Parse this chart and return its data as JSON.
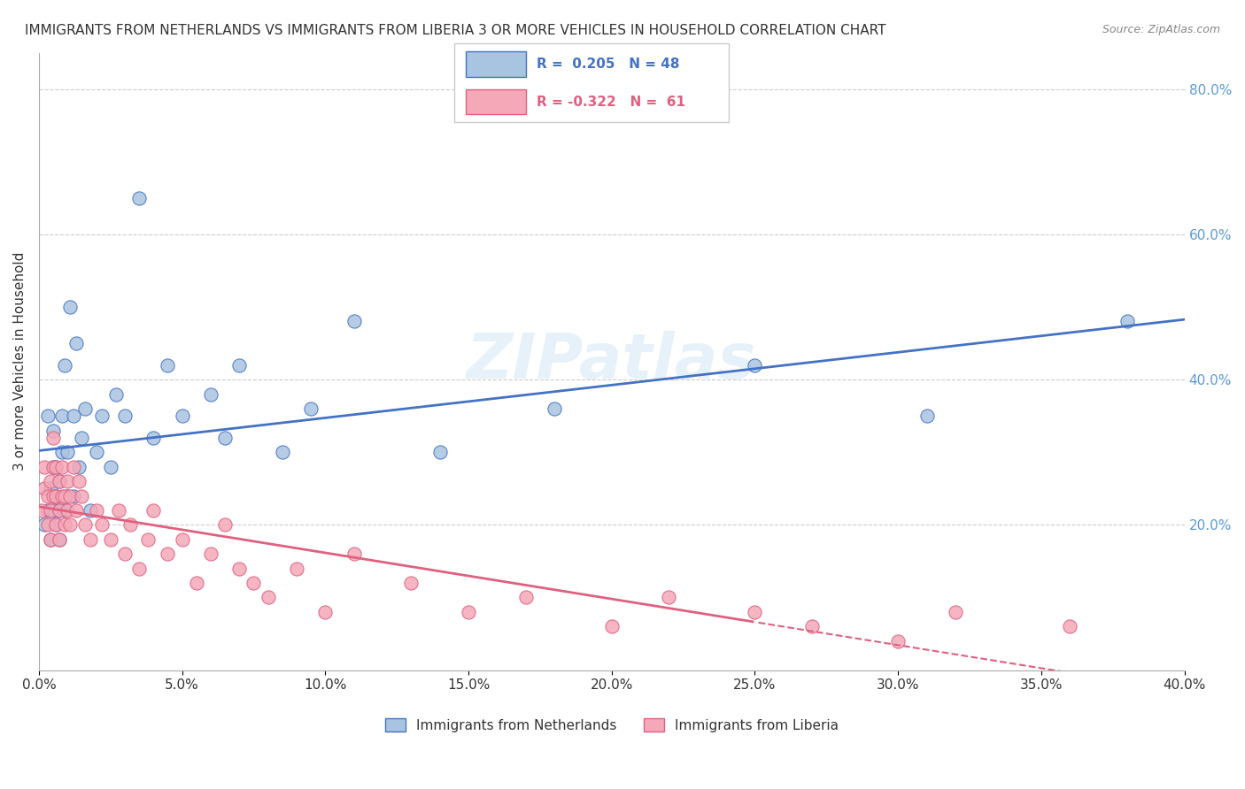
{
  "title": "IMMIGRANTS FROM NETHERLANDS VS IMMIGRANTS FROM LIBERIA 3 OR MORE VEHICLES IN HOUSEHOLD CORRELATION CHART",
  "source": "Source: ZipAtlas.com",
  "ylabel": "3 or more Vehicles in Household",
  "xlabel_blue": "Immigrants from Netherlands",
  "xlabel_pink": "Immigrants from Liberia",
  "r_blue": 0.205,
  "n_blue": 48,
  "r_pink": -0.322,
  "n_pink": 61,
  "xlim": [
    0.0,
    0.4
  ],
  "ylim": [
    0.0,
    0.85
  ],
  "xticks": [
    0.0,
    0.05,
    0.1,
    0.15,
    0.2,
    0.25,
    0.3,
    0.35,
    0.4
  ],
  "yticks_right": [
    0.2,
    0.4,
    0.6,
    0.8
  ],
  "color_blue": "#A8C4E0",
  "color_pink": "#F4A8B8",
  "line_blue": "#4472C4",
  "line_pink": "#E06080",
  "watermark": "ZIPatlas",
  "blue_x": [
    0.002,
    0.003,
    0.003,
    0.004,
    0.004,
    0.005,
    0.005,
    0.005,
    0.006,
    0.006,
    0.006,
    0.007,
    0.007,
    0.007,
    0.008,
    0.008,
    0.009,
    0.009,
    0.01,
    0.01,
    0.011,
    0.012,
    0.012,
    0.013,
    0.014,
    0.015,
    0.016,
    0.018,
    0.02,
    0.022,
    0.025,
    0.027,
    0.03,
    0.035,
    0.04,
    0.045,
    0.05,
    0.06,
    0.065,
    0.07,
    0.085,
    0.095,
    0.11,
    0.14,
    0.18,
    0.25,
    0.31,
    0.38
  ],
  "blue_y": [
    0.2,
    0.35,
    0.22,
    0.25,
    0.18,
    0.22,
    0.28,
    0.33,
    0.2,
    0.24,
    0.28,
    0.18,
    0.22,
    0.26,
    0.3,
    0.35,
    0.22,
    0.42,
    0.24,
    0.3,
    0.5,
    0.24,
    0.35,
    0.45,
    0.28,
    0.32,
    0.36,
    0.22,
    0.3,
    0.35,
    0.28,
    0.38,
    0.35,
    0.65,
    0.32,
    0.42,
    0.35,
    0.38,
    0.32,
    0.42,
    0.3,
    0.36,
    0.48,
    0.3,
    0.36,
    0.42,
    0.35,
    0.48
  ],
  "pink_x": [
    0.001,
    0.002,
    0.002,
    0.003,
    0.003,
    0.004,
    0.004,
    0.004,
    0.005,
    0.005,
    0.005,
    0.006,
    0.006,
    0.006,
    0.007,
    0.007,
    0.007,
    0.008,
    0.008,
    0.009,
    0.009,
    0.01,
    0.01,
    0.011,
    0.011,
    0.012,
    0.013,
    0.014,
    0.015,
    0.016,
    0.018,
    0.02,
    0.022,
    0.025,
    0.028,
    0.03,
    0.032,
    0.035,
    0.038,
    0.04,
    0.045,
    0.05,
    0.055,
    0.06,
    0.065,
    0.07,
    0.075,
    0.08,
    0.09,
    0.1,
    0.11,
    0.13,
    0.15,
    0.17,
    0.2,
    0.22,
    0.25,
    0.27,
    0.3,
    0.32,
    0.36
  ],
  "pink_y": [
    0.22,
    0.25,
    0.28,
    0.2,
    0.24,
    0.18,
    0.22,
    0.26,
    0.24,
    0.28,
    0.32,
    0.2,
    0.24,
    0.28,
    0.18,
    0.22,
    0.26,
    0.24,
    0.28,
    0.2,
    0.24,
    0.22,
    0.26,
    0.2,
    0.24,
    0.28,
    0.22,
    0.26,
    0.24,
    0.2,
    0.18,
    0.22,
    0.2,
    0.18,
    0.22,
    0.16,
    0.2,
    0.14,
    0.18,
    0.22,
    0.16,
    0.18,
    0.12,
    0.16,
    0.2,
    0.14,
    0.12,
    0.1,
    0.14,
    0.08,
    0.16,
    0.12,
    0.08,
    0.1,
    0.06,
    0.1,
    0.08,
    0.06,
    0.04,
    0.08,
    0.06
  ]
}
